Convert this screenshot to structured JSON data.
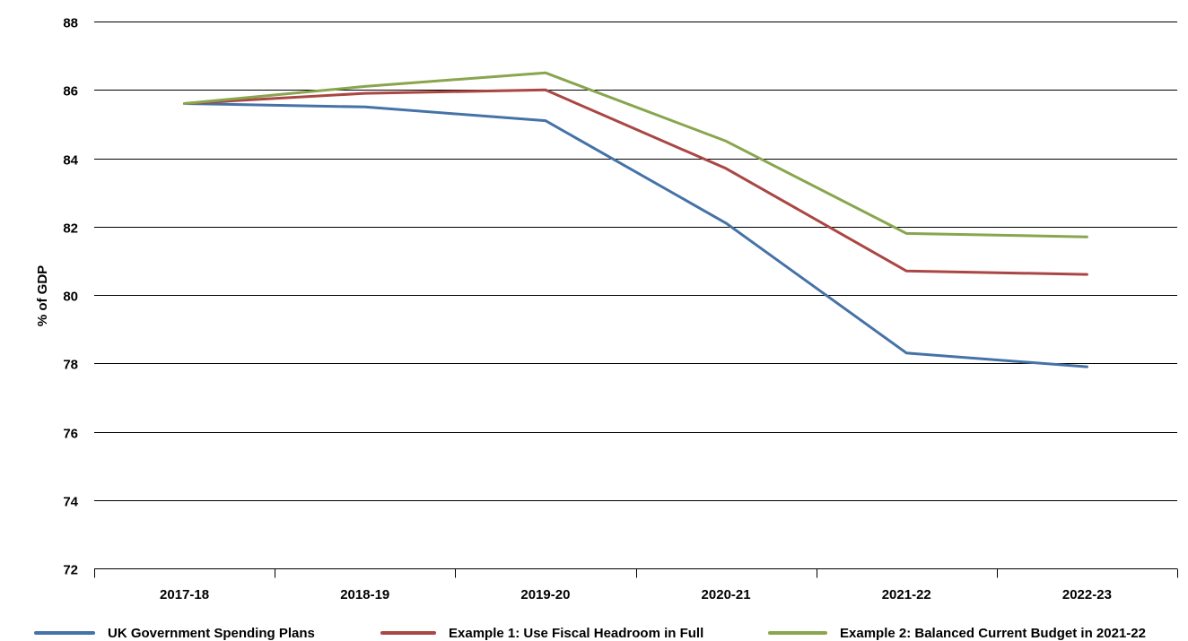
{
  "chart_data": {
    "type": "line",
    "title": "",
    "xlabel": "",
    "ylabel": "% of GDP",
    "ylim": [
      72,
      88
    ],
    "yticks": [
      72,
      74,
      76,
      78,
      80,
      82,
      84,
      86,
      88
    ],
    "grid": "horizontal",
    "legend_position": "bottom",
    "categories": [
      "2017-18",
      "2018-19",
      "2019-20",
      "2020-21",
      "2021-22",
      "2022-23"
    ],
    "series": [
      {
        "name": "UK Government Spending Plans",
        "color": "#4572A7",
        "values": [
          85.6,
          85.5,
          85.1,
          82.1,
          78.3,
          77.9
        ]
      },
      {
        "name": "Example 1: Use Fiscal Headroom in Full",
        "color": "#AA4643",
        "values": [
          85.6,
          85.9,
          86.0,
          83.7,
          80.7,
          80.6
        ]
      },
      {
        "name": "Example 2: Balanced Current Budget in 2021-22",
        "color": "#89A54E",
        "values": [
          85.6,
          86.1,
          86.5,
          84.5,
          81.8,
          81.7
        ]
      }
    ]
  }
}
